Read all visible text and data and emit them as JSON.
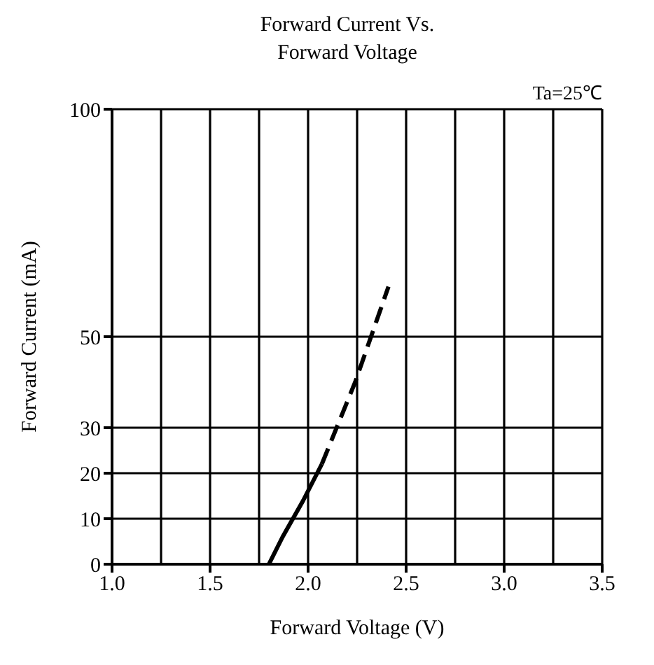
{
  "chart_data": {
    "type": "line",
    "title": "Forward Current Vs.\nForward Voltage",
    "xlabel": "Forward Voltage (V)",
    "ylabel": "Forward  Current (mA)",
    "annotations": [
      "Ta=25℃"
    ],
    "xlim": [
      1.0,
      3.5
    ],
    "xticks": [
      {
        "value": 1,
        "label": "1.0"
      },
      {
        "value": 1.5,
        "label": "1.5"
      },
      {
        "value": 2,
        "label": "2.0"
      },
      {
        "value": 2.5,
        "label": "2.5"
      },
      {
        "value": 3,
        "label": "3.0"
      },
      {
        "value": 3.5,
        "label": "3.5"
      }
    ],
    "ylim": [
      0,
      100
    ],
    "yticks": [
      0,
      10,
      20,
      30,
      50,
      100
    ],
    "grid": true,
    "marker": "none",
    "series": [
      {
        "color": "#000000",
        "line_style": "solid",
        "x": [
          1.8,
          1.87,
          1.975,
          2.07
        ],
        "values": [
          0,
          6,
          14,
          22
        ]
      },
      {
        "color": "#000000",
        "line_style": "dashed",
        "x": [
          2.07,
          2.24,
          2.41
        ],
        "values": [
          22,
          40,
          61
        ]
      }
    ]
  }
}
